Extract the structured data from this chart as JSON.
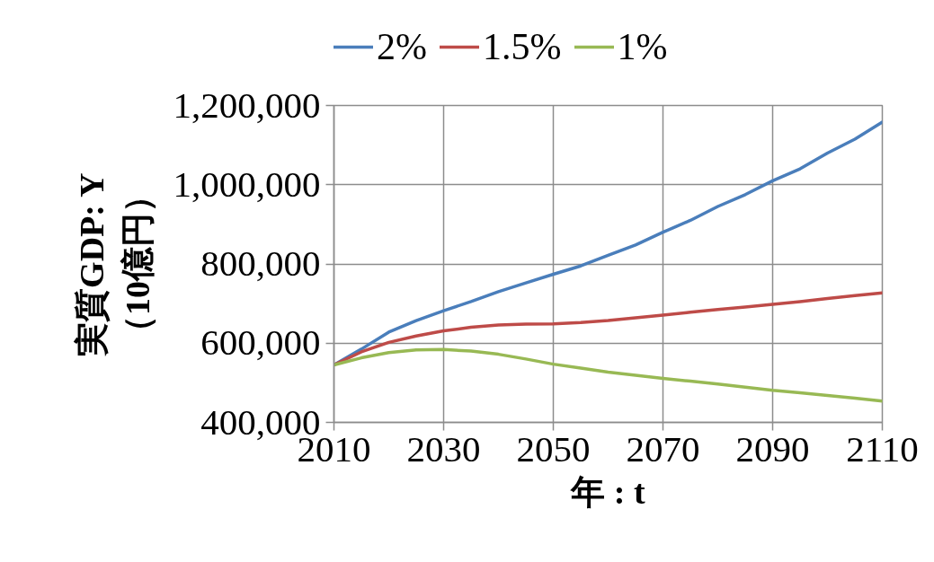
{
  "chart_data": {
    "type": "line",
    "xlabel": "年 : t",
    "ylabel": "実質GDP: Y\n（10億円）",
    "x": [
      2010,
      2015,
      2020,
      2025,
      2030,
      2035,
      2040,
      2045,
      2050,
      2055,
      2060,
      2065,
      2070,
      2075,
      2080,
      2085,
      2090,
      2095,
      2100,
      2105,
      2110
    ],
    "series": [
      {
        "name": "2%",
        "color": "#4a7ebb",
        "values": [
          545000,
          585000,
          628000,
          657000,
          682000,
          705000,
          730000,
          752000,
          774000,
          795000,
          822000,
          848000,
          880000,
          910000,
          945000,
          975000,
          1010000,
          1040000,
          1080000,
          1115000,
          1158000
        ]
      },
      {
        "name": "1.5%",
        "color": "#be4b48",
        "values": [
          545000,
          578000,
          602000,
          618000,
          631000,
          640000,
          646000,
          648000,
          649000,
          652000,
          657000,
          664000,
          671000,
          678000,
          685000,
          691000,
          698000,
          705000,
          713000,
          720000,
          727000
        ]
      },
      {
        "name": "1%",
        "color": "#98b954",
        "values": [
          545000,
          563000,
          576000,
          583000,
          584000,
          580000,
          572000,
          560000,
          547000,
          537000,
          527000,
          519000,
          511000,
          504000,
          497000,
          489000,
          481000,
          475000,
          468000,
          461000,
          454000
        ]
      }
    ],
    "xlim": [
      2010,
      2110
    ],
    "xticks": [
      2010,
      2030,
      2050,
      2070,
      2090,
      2110
    ],
    "ylim": [
      400000,
      1200000
    ],
    "yticks": [
      {
        "value": 400000,
        "label": "400,000"
      },
      {
        "value": 600000,
        "label": "600,000"
      },
      {
        "value": 800000,
        "label": "800,000"
      },
      {
        "value": 1000000,
        "label": "1,000,000"
      },
      {
        "value": 1200000,
        "label": "1,200,000"
      }
    ],
    "grid": true,
    "legend": "top"
  }
}
